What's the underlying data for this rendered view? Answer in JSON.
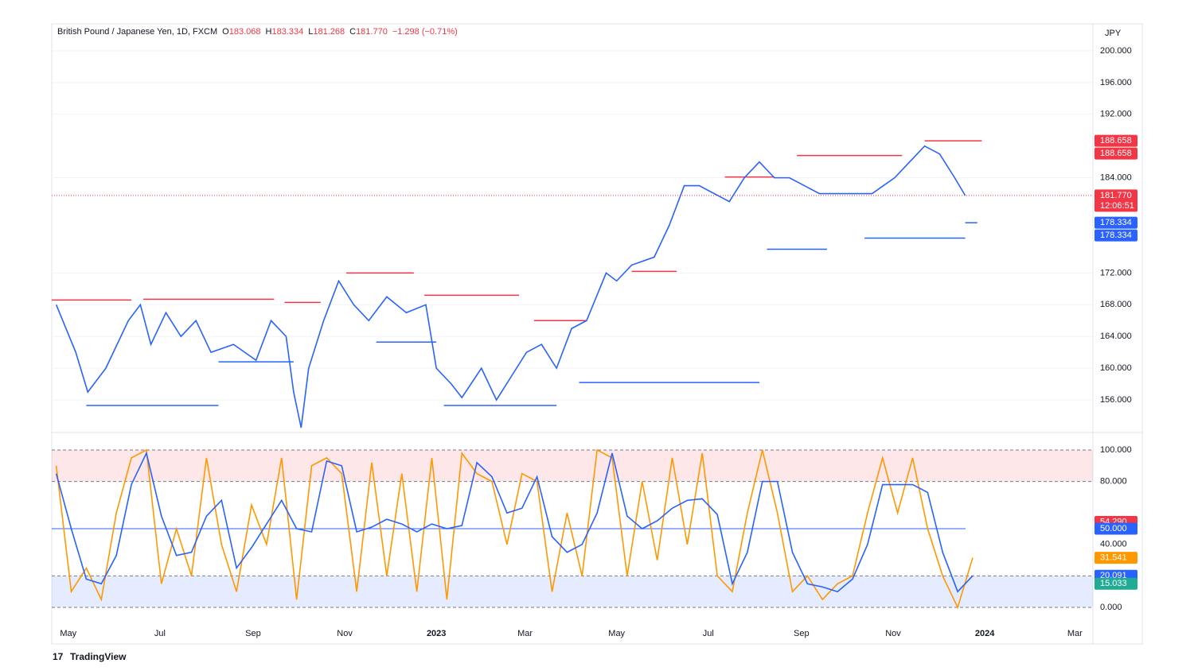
{
  "header": {
    "symbol": "British Pound / Japanese Yen, 1D, FXCM",
    "ohlc": [
      {
        "key": "O",
        "value": "183.068"
      },
      {
        "key": "H",
        "value": "183.334"
      },
      {
        "key": "L",
        "value": "181.268"
      },
      {
        "key": "C",
        "value": "181.770"
      }
    ],
    "change": "−1.298 (−0.71%)",
    "currency": "JPY"
  },
  "branding": "TradingView",
  "chart_data": [
    {
      "type": "line",
      "name": "price",
      "x": [
        -8,
        5,
        13,
        25,
        40,
        48,
        55,
        65,
        75,
        85,
        95,
        110,
        125,
        135,
        145,
        150,
        155,
        160,
        170,
        180,
        190,
        200,
        212,
        225,
        238,
        245,
        255,
        262,
        275,
        285,
        295,
        305,
        315,
        325,
        335,
        345,
        358,
        365,
        375,
        390,
        400,
        410,
        420,
        430,
        440,
        450,
        460,
        470,
        480,
        490,
        500,
        510,
        520,
        535,
        550,
        560,
        570,
        580,
        590,
        597
      ],
      "series": [
        {
          "name": "GBPJPY",
          "color": "#2962ff",
          "values": [
            168,
            162,
            157,
            160,
            166,
            168,
            163,
            167,
            164,
            166,
            162,
            163,
            161,
            166,
            164,
            157,
            152.5,
            160,
            166,
            171,
            168,
            166,
            169,
            167,
            168,
            160,
            158,
            156.3,
            160,
            156,
            159,
            162,
            163,
            160,
            165,
            166,
            172,
            171,
            173,
            174,
            178,
            183,
            183,
            182,
            181,
            184,
            186,
            184,
            184,
            183,
            182,
            182,
            182,
            182,
            184,
            186,
            188,
            187,
            184,
            181.77
          ]
        }
      ],
      "resistance": [
        {
          "x": [
            -11,
            42
          ],
          "value": 168.6
        },
        {
          "x": [
            50,
            137
          ],
          "value": 168.7
        },
        {
          "x": [
            144,
            168
          ],
          "value": 168.3
        },
        {
          "x": [
            185,
            230
          ],
          "value": 172
        },
        {
          "x": [
            237,
            300
          ],
          "value": 169.2
        },
        {
          "x": [
            310,
            345
          ],
          "value": 166
        },
        {
          "x": [
            375,
            405
          ],
          "value": 172.2
        },
        {
          "x": [
            437,
            470
          ],
          "value": 184.1
        },
        {
          "x": [
            485,
            555
          ],
          "value": 186.8
        },
        {
          "x": [
            570,
            608
          ],
          "value": 188.658
        }
      ],
      "support": [
        {
          "x": [
            12,
            100
          ],
          "value": 155.3
        },
        {
          "x": [
            100,
            150
          ],
          "value": 160.8
        },
        {
          "x": [
            205,
            245
          ],
          "value": 163.3
        },
        {
          "x": [
            250,
            325
          ],
          "value": 155.3
        },
        {
          "x": [
            340,
            460
          ],
          "value": 158.2
        },
        {
          "x": [
            465,
            505
          ],
          "value": 175
        },
        {
          "x": [
            530,
            597
          ],
          "value": 176.4
        },
        {
          "x": [
            597,
            605
          ],
          "value": 178.334
        }
      ],
      "xlim": [
        -11,
        682
      ],
      "ylim": [
        152.3,
        203.4
      ],
      "yticks": [
        {
          "value": 156,
          "label": "156.000"
        },
        {
          "value": 160,
          "label": "160.000"
        },
        {
          "value": 164,
          "label": "164.000"
        },
        {
          "value": 168,
          "label": "168.000"
        },
        {
          "value": 172,
          "label": "172.000"
        },
        {
          "value": 184,
          "label": "184.000"
        },
        {
          "value": 192,
          "label": "192.000"
        },
        {
          "value": 196,
          "label": "196.000"
        },
        {
          "value": 200,
          "label": "200.000"
        }
      ],
      "price_markers": [
        {
          "value": 188.658,
          "label": "188.658",
          "color": "#f23645"
        },
        {
          "value": 188.658,
          "label": "188.658",
          "color": "#f23645"
        },
        {
          "value": 181.77,
          "label": "181.770",
          "sublabel": "12:06:51",
          "color": "#f23645"
        },
        {
          "value": 178.334,
          "label": "178.334",
          "color": "#2962ff"
        },
        {
          "value": 178.334,
          "label": "178.334",
          "color": "#2962ff"
        }
      ],
      "grid": true
    },
    {
      "type": "line",
      "name": "stochastic",
      "x": [
        -8,
        2,
        12,
        22,
        32,
        42,
        52,
        62,
        72,
        82,
        92,
        102,
        112,
        122,
        132,
        142,
        152,
        162,
        172,
        182,
        192,
        202,
        212,
        222,
        232,
        242,
        252,
        262,
        272,
        282,
        292,
        302,
        312,
        322,
        332,
        342,
        352,
        362,
        372,
        382,
        392,
        402,
        412,
        422,
        432,
        442,
        452,
        462,
        472,
        482,
        492,
        502,
        512,
        522,
        532,
        542,
        552,
        562,
        572,
        582,
        592,
        602
      ],
      "series": [
        {
          "name": "%K",
          "color": "#ff9800",
          "values": [
            90,
            10,
            25,
            5,
            60,
            95,
            100,
            15,
            50,
            20,
            95,
            40,
            10,
            65,
            40,
            95,
            5,
            90,
            95,
            85,
            10,
            92,
            20,
            85,
            10,
            95,
            5,
            98,
            85,
            80,
            40,
            85,
            80,
            10,
            60,
            20,
            100,
            95,
            20,
            80,
            30,
            95,
            40,
            98,
            20,
            10,
            60,
            100,
            60,
            10,
            20,
            5,
            15,
            20,
            60,
            95,
            60,
            95,
            50,
            20,
            0,
            31.541
          ]
        },
        {
          "name": "%D",
          "color": "#2962ff",
          "values": [
            85,
            50,
            18,
            15,
            33,
            78,
            98,
            58,
            33,
            35,
            58,
            68,
            25,
            38,
            53,
            68,
            50,
            48,
            93,
            90,
            48,
            51,
            56,
            53,
            48,
            53,
            50,
            52,
            92,
            83,
            60,
            63,
            83,
            45,
            35,
            40,
            60,
            98,
            58,
            50,
            55,
            63,
            68,
            69,
            59,
            15,
            35,
            80,
            80,
            35,
            15,
            13,
            10,
            18,
            40,
            78,
            78,
            78,
            73,
            35,
            10,
            20.091
          ]
        }
      ],
      "xlim": [
        -11,
        682
      ],
      "ylim": [
        -10.6,
        109.1
      ],
      "yticks": [
        {
          "value": 0,
          "label": "0.000"
        },
        {
          "value": 40,
          "label": "40.000"
        },
        {
          "value": 80,
          "label": "80.000"
        },
        {
          "value": 100,
          "label": "100.000"
        }
      ],
      "bands": [
        {
          "range": [
            80,
            100
          ],
          "color": "#f23645"
        },
        {
          "range": [
            0,
            20
          ],
          "color": "#2962ff"
        }
      ],
      "hline": {
        "value": 50,
        "color": "#2962ff"
      },
      "price_markers": [
        {
          "value": 54.29,
          "label": "54.290",
          "color": "#f23645"
        },
        {
          "value": 50,
          "label": "50.000",
          "color": "#2962ff"
        },
        {
          "value": 31.541,
          "label": "31.541",
          "color": "#ff9800"
        },
        {
          "value": 20.091,
          "label": "20.091",
          "color": "#2962ff"
        },
        {
          "value": 15.033,
          "label": "15.033",
          "color": "#22ab94"
        }
      ],
      "xticks": [
        {
          "value": 0,
          "label": "May"
        },
        {
          "value": 61,
          "label": "Jul"
        },
        {
          "value": 123,
          "label": "Sep"
        },
        {
          "value": 184,
          "label": "Nov"
        },
        {
          "value": 245,
          "label": "2023"
        },
        {
          "value": 304,
          "label": "Mar"
        },
        {
          "value": 365,
          "label": "May"
        },
        {
          "value": 426,
          "label": "Jul"
        },
        {
          "value": 488,
          "label": "Sep"
        },
        {
          "value": 549,
          "label": "Nov"
        },
        {
          "value": 610,
          "label": "2024"
        },
        {
          "value": 670,
          "label": "Mar"
        }
      ]
    }
  ]
}
